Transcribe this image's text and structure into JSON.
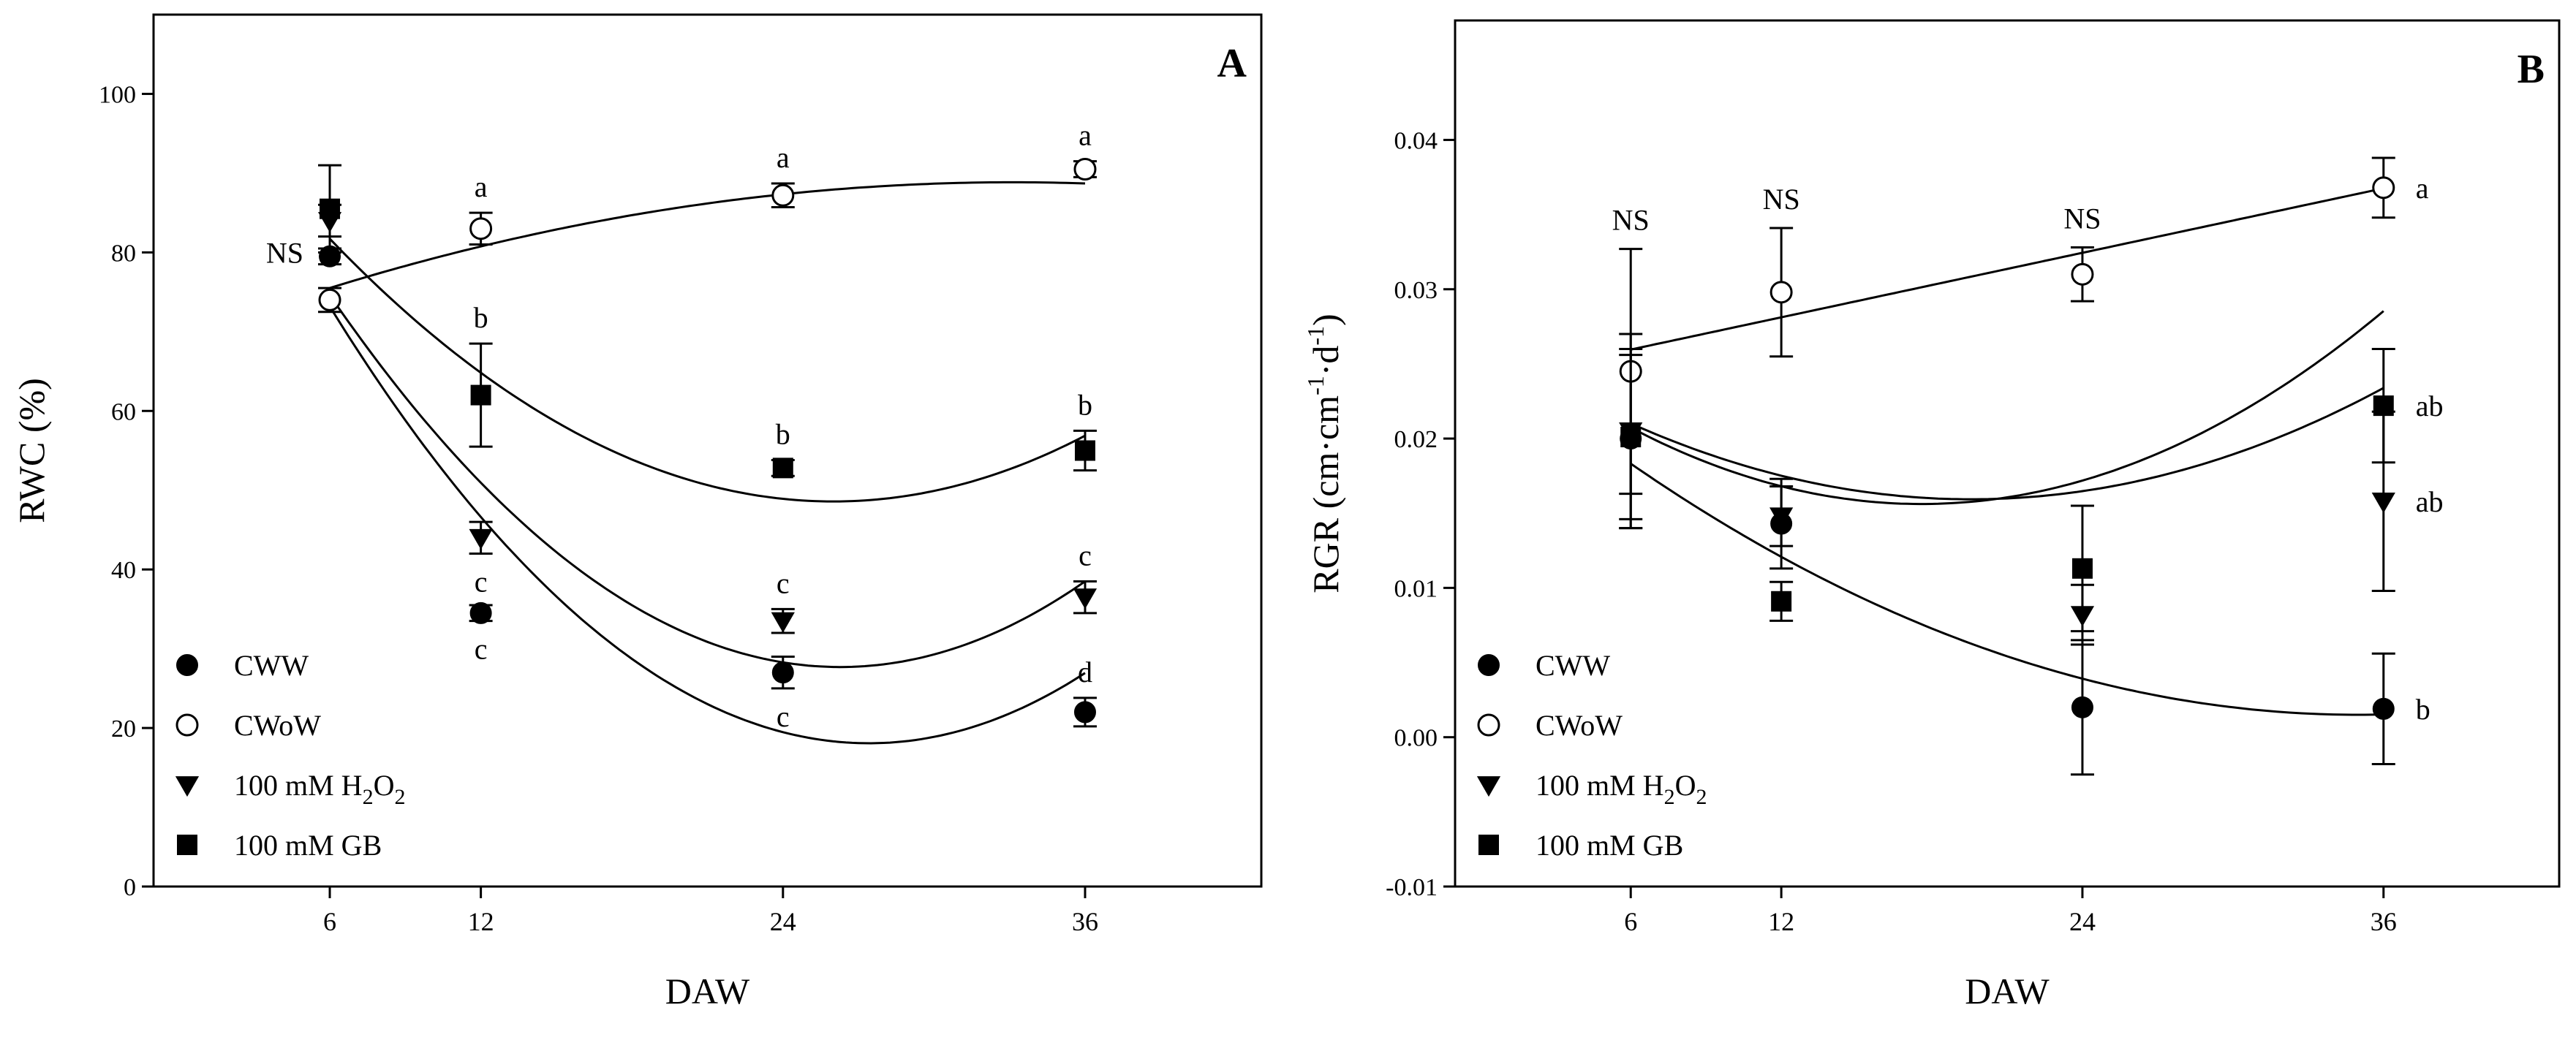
{
  "chart_data": [
    {
      "type": "scatter",
      "panel_label": "A",
      "xlabel": "DAW",
      "ylabel": "RWC (%)",
      "x_positions": [
        6,
        12,
        24,
        36
      ],
      "x_ticks": [
        "6",
        "12",
        "24",
        "36"
      ],
      "xlim": [
        -1,
        43
      ],
      "ylim": [
        0,
        110
      ],
      "y_ticks": [
        "0",
        "20",
        "40",
        "60",
        "80",
        "100"
      ],
      "y_tick_values": [
        0,
        20,
        40,
        60,
        80,
        100
      ],
      "series": [
        {
          "name": "CWW",
          "sub": "",
          "marker": "filled-circle",
          "values": [
            79.5,
            34.5,
            27,
            22
          ],
          "errors": [
            1,
            1,
            2,
            1.8
          ],
          "fit": [
            108.4,
            -6.59,
            0.1202
          ],
          "letters": [
            {
              "i": 1,
              "text": "c",
              "pos": "below"
            },
            {
              "i": 2,
              "text": "c",
              "pos": "below"
            },
            {
              "i": 3,
              "text": "d",
              "pos": "above"
            }
          ]
        },
        {
          "name": "CWoW",
          "sub": "",
          "marker": "open-circle",
          "values": [
            74,
            83,
            87.2,
            90.5
          ],
          "errors": [
            1.5,
            2,
            1.5,
            1
          ],
          "fit": [
            68.96,
            1.2,
            -0.0181
          ],
          "letters": [
            {
              "i": 1,
              "text": "a",
              "pos": "above"
            },
            {
              "i": 2,
              "text": "a",
              "pos": "above"
            },
            {
              "i": 3,
              "text": "a",
              "pos": "above"
            }
          ]
        },
        {
          "name": "100 mM H",
          "sub": "2",
          "name2": "O",
          "sub2": "2",
          "marker": "filled-triangle-down",
          "values": [
            84,
            44,
            33.5,
            36.5
          ],
          "errors": [
            2,
            2,
            1.5,
            2
          ],
          "fit": [
            106.5,
            -6.0,
            0.1142
          ],
          "letters": [
            {
              "i": 1,
              "text": "c",
              "pos": "below"
            },
            {
              "i": 2,
              "text": "c",
              "pos": "above"
            },
            {
              "i": 3,
              "text": "c",
              "pos": "above"
            }
          ]
        },
        {
          "name": "100 mM GB",
          "sub": "",
          "marker": "filled-square",
          "values": [
            85.5,
            62,
            52.8,
            55
          ],
          "errors": [
            5.5,
            6.5,
            1,
            2.5
          ],
          "fit": [
            104.6,
            -4.31,
            0.0829
          ],
          "letters": [
            {
              "i": 1,
              "text": "b",
              "pos": "above"
            },
            {
              "i": 2,
              "text": "b",
              "pos": "above"
            },
            {
              "i": 3,
              "text": "b",
              "pos": "above"
            }
          ]
        }
      ],
      "annotations": [
        {
          "text": "NS"
        }
      ],
      "legend_position": "bottom-left"
    },
    {
      "type": "scatter",
      "panel_label": "B",
      "xlabel": "DAW",
      "ylabel": "RGR (cm·cm-1·d-1)",
      "ylabel_parts": [
        "RGR (cm·cm",
        "-1",
        "·d",
        "-1",
        ")"
      ],
      "x_positions": [
        6,
        12,
        24,
        36
      ],
      "x_ticks": [
        "6",
        "12",
        "24",
        "36"
      ],
      "xlim": [
        -1,
        43
      ],
      "ylim": [
        -0.01,
        0.048
      ],
      "y_ticks": [
        "-0.01",
        "0.00",
        "0.01",
        "0.02",
        "0.03",
        "0.04"
      ],
      "y_tick_values": [
        -0.01,
        0,
        0.01,
        0.02,
        0.03,
        0.04
      ],
      "series": [
        {
          "name": "CWW",
          "sub": "",
          "marker": "filled-circle",
          "values": [
            0.02,
            0.0143,
            0.002,
            0.0019
          ],
          "errors": [
            0.006,
            0.003,
            0.0045,
            0.0037
          ],
          "fit": [
            0.026,
            -0.0014,
            2e-05
          ],
          "letters": [
            {
              "i": 3,
              "text": "b",
              "pos": "right"
            }
          ]
        },
        {
          "name": "CWoW",
          "sub": "",
          "marker": "open-circle",
          "values": [
            0.0245,
            0.0298,
            0.031,
            0.0368
          ],
          "errors": [
            0.0082,
            0.0043,
            0.0018,
            0.002
          ],
          "fit": [
            0.0238,
            0.00036,
            0
          ],
          "letters": [
            {
              "i": 3,
              "text": "a",
              "pos": "right"
            }
          ]
        },
        {
          "name": "100 mM H",
          "sub": "2",
          "name2": "O",
          "sub2": "2",
          "marker": "filled-triangle-down",
          "values": [
            0.0205,
            0.0148,
            0.0082,
            0.0158
          ],
          "errors": [
            0.0065,
            0.002,
            0.002,
            0.006
          ],
          "fit": [
            0.0265,
            -0.00108,
            2.76e-05
          ],
          "letters": [
            {
              "i": 3,
              "text": "ab",
              "pos": "right"
            }
          ]
        },
        {
          "name": "100 mM GB",
          "sub": "",
          "marker": "filled-square",
          "values": [
            0.0201,
            0.0091,
            0.0113,
            0.0222
          ],
          "errors": [
            0.0055,
            0.0013,
            0.0042,
            0.0038
          ],
          "fit": [
            0.0274,
            -0.00134,
            3.81e-05
          ],
          "letters": [
            {
              "i": 3,
              "text": "ab",
              "pos": "right"
            }
          ]
        }
      ],
      "annotations": [
        {
          "text": "NS",
          "at": 6
        },
        {
          "text": "NS",
          "at": 12
        },
        {
          "text": "NS",
          "at": 24
        }
      ],
      "legend_position": "bottom-left"
    }
  ]
}
